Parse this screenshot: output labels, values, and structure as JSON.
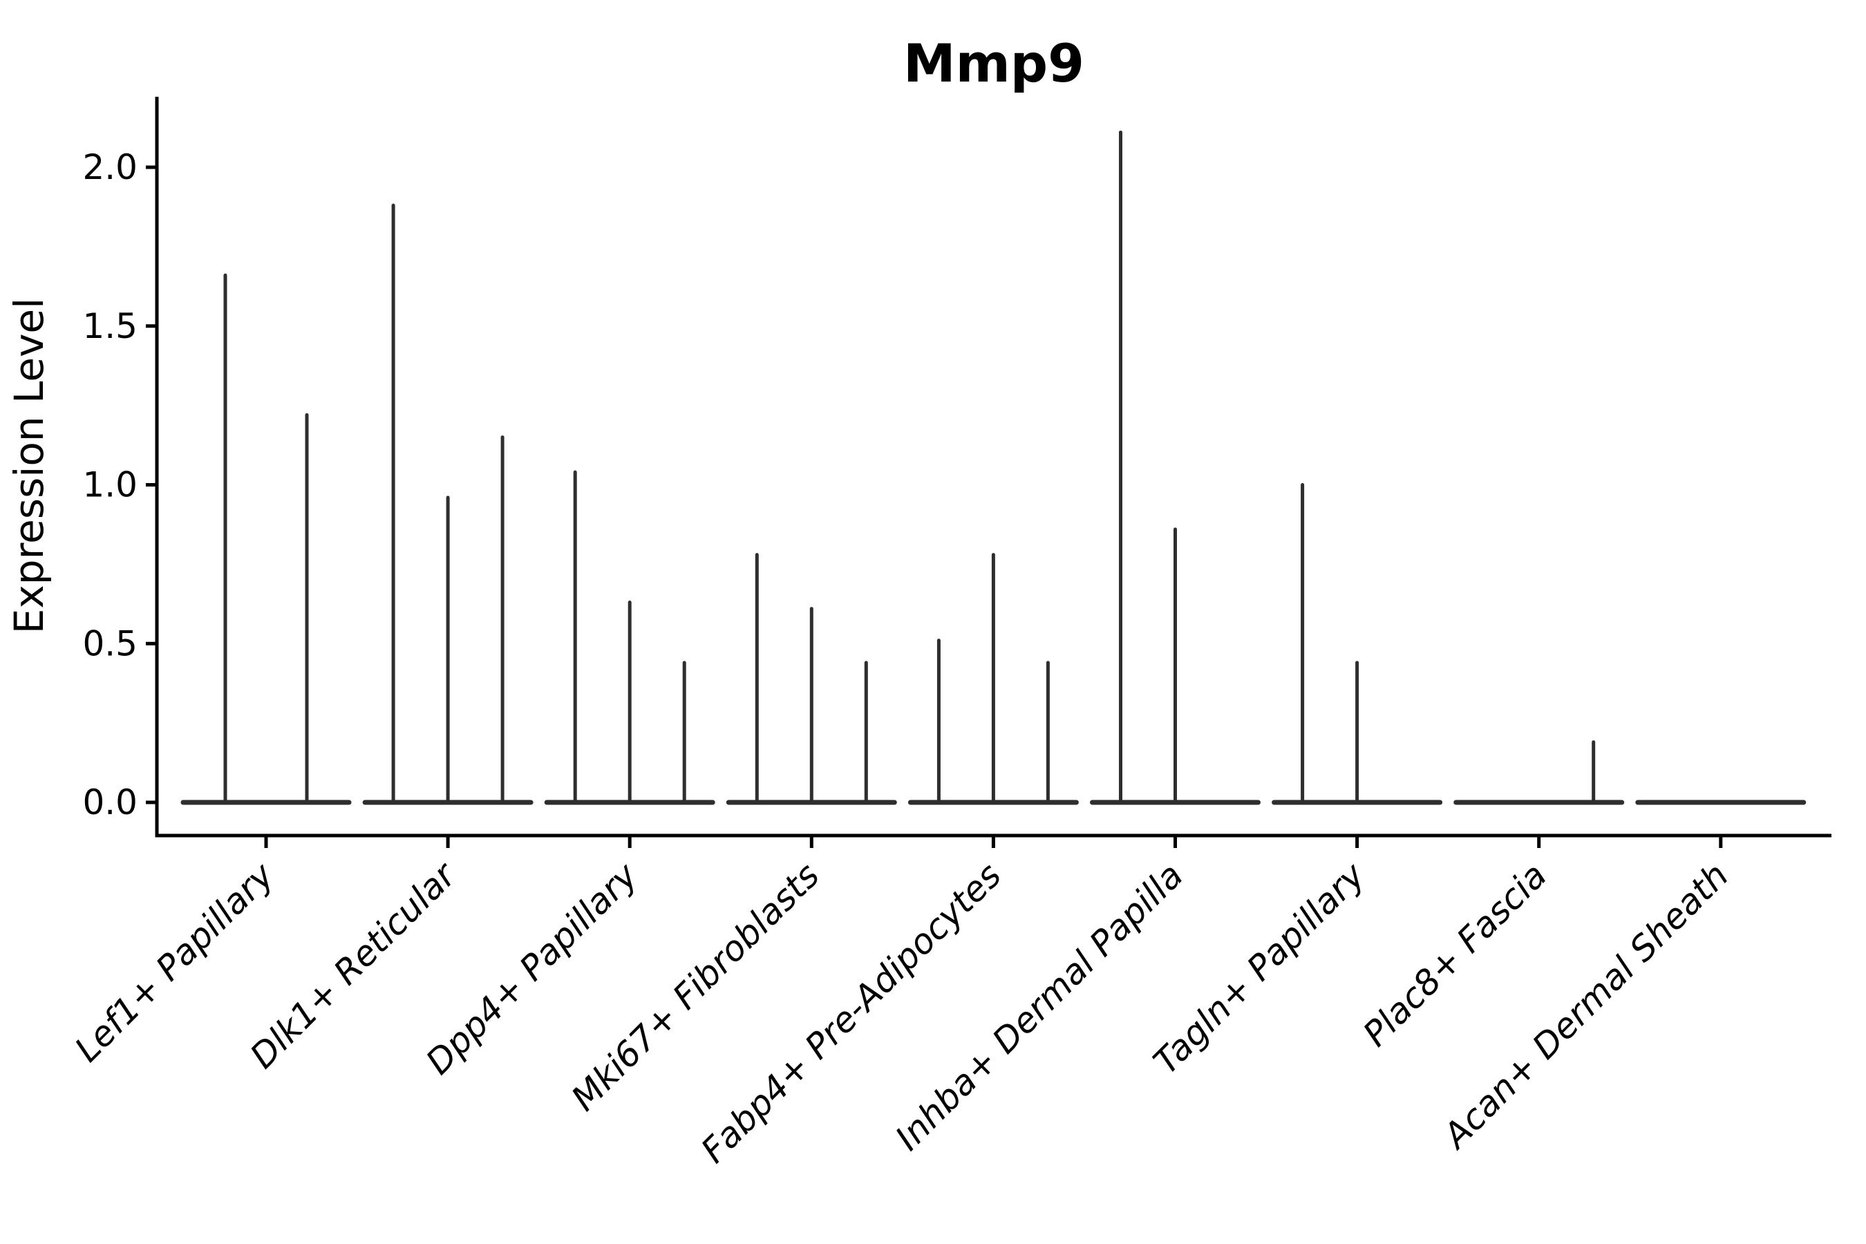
{
  "chart_data": {
    "type": "violin",
    "title": "Mmp9",
    "xlabel": "",
    "ylabel": "Expression Level",
    "grid": false,
    "legend": "none",
    "ylim": [
      -0.104,
      2.222
    ],
    "y_ticks": [
      {
        "label": "0.0",
        "value": 0.0
      },
      {
        "label": "0.5",
        "value": 0.5
      },
      {
        "label": "1.0",
        "value": 1.0
      },
      {
        "label": "1.5",
        "value": 1.5
      },
      {
        "label": "2.0",
        "value": 2.0
      }
    ],
    "note": "Each category shows thin violins (near-zero density above 0, wide flat base at 0). 'offset' is the sub-violin position within the category group; 'max' is the top of the expression spike (0 = flat violin, no spike).",
    "categories": [
      {
        "label": "Lef1+ Papillary",
        "violins": [
          {
            "offset": -59,
            "max": 1.66
          },
          {
            "offset": 59,
            "max": 1.22
          }
        ]
      },
      {
        "label": "Dlk1+ Reticular",
        "violins": [
          {
            "offset": -79,
            "max": 1.88
          },
          {
            "offset": 0,
            "max": 0.96
          },
          {
            "offset": 79,
            "max": 1.15
          }
        ]
      },
      {
        "label": "Dpp4+ Papillary",
        "violins": [
          {
            "offset": -79,
            "max": 1.04
          },
          {
            "offset": 0,
            "max": 0.63
          },
          {
            "offset": 79,
            "max": 0.44
          }
        ]
      },
      {
        "label": "Mki67+ Fibroblasts",
        "violins": [
          {
            "offset": -79,
            "max": 0.78
          },
          {
            "offset": 0,
            "max": 0.61
          },
          {
            "offset": 79,
            "max": 0.44
          }
        ]
      },
      {
        "label": "Fabp4+ Pre-Adipocytes",
        "violins": [
          {
            "offset": -79,
            "max": 0.51
          },
          {
            "offset": 0,
            "max": 0.78
          },
          {
            "offset": 79,
            "max": 0.44
          }
        ]
      },
      {
        "label": "Inhba+ Dermal Papilla",
        "violins": [
          {
            "offset": -79,
            "max": 2.11
          },
          {
            "offset": 0,
            "max": 0.86
          },
          {
            "offset": 79,
            "max": 0
          }
        ]
      },
      {
        "label": "Tagln+ Papillary",
        "violins": [
          {
            "offset": -79,
            "max": 1.0
          },
          {
            "offset": 0,
            "max": 0.44
          },
          {
            "offset": 79,
            "max": 0
          }
        ]
      },
      {
        "label": "Plac8+ Fascia",
        "violins": [
          {
            "offset": -79,
            "max": 0
          },
          {
            "offset": 0,
            "max": 0
          },
          {
            "offset": 79,
            "max": 0.19
          }
        ]
      },
      {
        "label": "Acan+ Dermal Sheath",
        "violins": [
          {
            "offset": -79,
            "max": 0
          },
          {
            "offset": 0,
            "max": 0
          },
          {
            "offset": 79,
            "max": 0
          }
        ]
      }
    ],
    "colors": {
      "violin": "#2e2e2e",
      "axis": "#000000",
      "background": "#ffffff"
    }
  }
}
